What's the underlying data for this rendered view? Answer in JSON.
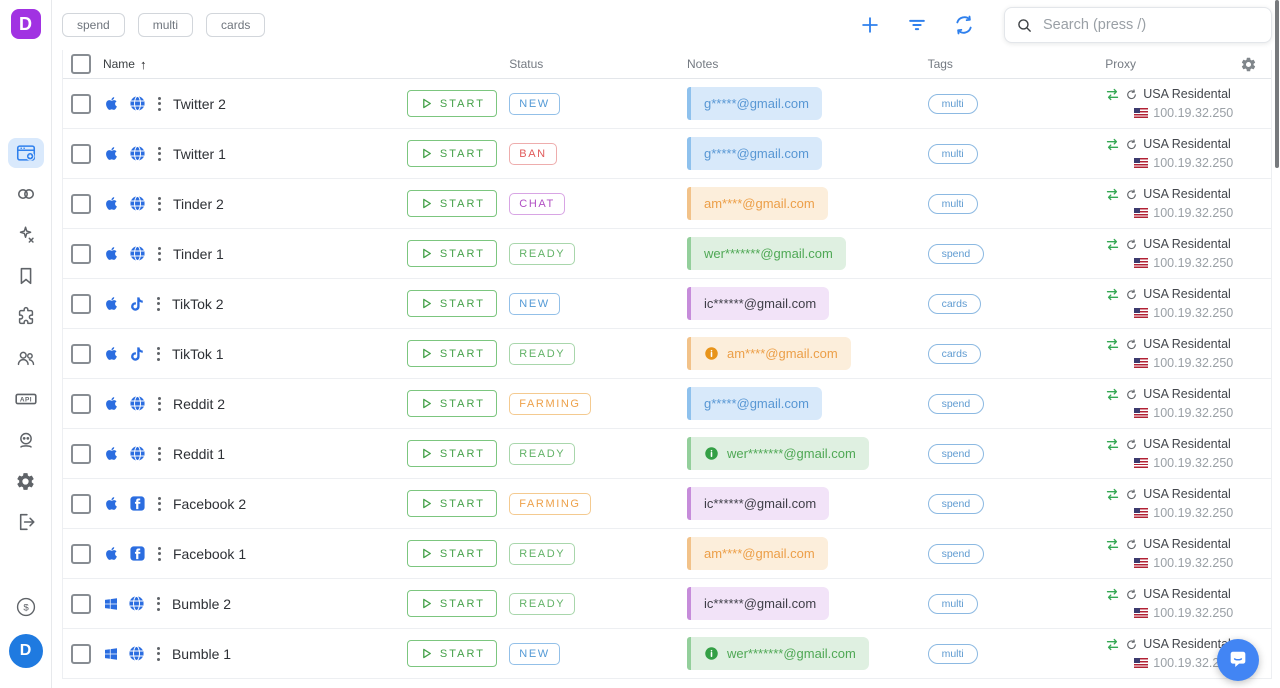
{
  "colors": {
    "accent_blue": "#2f80ed",
    "platform_blue": "#2b6de0",
    "start_green": "#43a047",
    "logo_purple": "#a132e2"
  },
  "sidebar": {
    "items": [
      {
        "name": "browser-profiles",
        "active": true
      },
      {
        "name": "proxy",
        "active": false
      },
      {
        "name": "automation",
        "active": false
      },
      {
        "name": "bookmarks",
        "active": false
      },
      {
        "name": "extensions",
        "active": false
      },
      {
        "name": "team",
        "active": false
      },
      {
        "name": "api",
        "active": false
      },
      {
        "name": "support-bot",
        "active": false
      },
      {
        "name": "settings",
        "active": false
      },
      {
        "name": "logout",
        "active": false
      }
    ],
    "avatar_initial": "D"
  },
  "topbar": {
    "chips": [
      "spend",
      "multi",
      "cards"
    ],
    "search_placeholder": "Search (press /)"
  },
  "table": {
    "headers": {
      "name": "Name",
      "status": "Status",
      "notes": "Notes",
      "tags": "Tags",
      "proxy": "Proxy"
    },
    "sort_arrow": "↑",
    "start_label": "START",
    "rows": [
      {
        "name": "Twitter 2",
        "os": "apple",
        "platform": "globe",
        "status": "NEW",
        "status_color": "blue",
        "note": "g*****@gmail.com",
        "note_color": "blue",
        "note_info": false,
        "tag": "multi",
        "proxy": "USA Residental",
        "ip": "100.19.32.250"
      },
      {
        "name": "Twitter 1",
        "os": "apple",
        "platform": "globe",
        "status": "BAN",
        "status_color": "red",
        "note": "g*****@gmail.com",
        "note_color": "blue",
        "note_info": false,
        "tag": "multi",
        "proxy": "USA Residental",
        "ip": "100.19.32.250"
      },
      {
        "name": "Tinder 2",
        "os": "apple",
        "platform": "globe",
        "status": "CHAT",
        "status_color": "purple",
        "note": "am****@gmail.com",
        "note_color": "orange",
        "note_info": false,
        "tag": "multi",
        "proxy": "USA Residental",
        "ip": "100.19.32.250"
      },
      {
        "name": "Tinder 1",
        "os": "apple",
        "platform": "globe",
        "status": "READY",
        "status_color": "green",
        "note": "wer*******@gmail.com",
        "note_color": "green",
        "note_info": false,
        "tag": "spend",
        "proxy": "USA Residental",
        "ip": "100.19.32.250"
      },
      {
        "name": "TikTok 2",
        "os": "apple",
        "platform": "tiktok",
        "status": "NEW",
        "status_color": "blue",
        "note": "ic******@gmail.com",
        "note_color": "purple",
        "note_info": false,
        "tag": "cards",
        "proxy": "USA Residental",
        "ip": "100.19.32.250"
      },
      {
        "name": "TikTok 1",
        "os": "apple",
        "platform": "tiktok",
        "status": "READY",
        "status_color": "green",
        "note": "am****@gmail.com",
        "note_color": "orange",
        "note_info": true,
        "tag": "cards",
        "proxy": "USA Residental",
        "ip": "100.19.32.250"
      },
      {
        "name": "Reddit 2",
        "os": "apple",
        "platform": "globe",
        "status": "FARMING",
        "status_color": "orange",
        "note": "g*****@gmail.com",
        "note_color": "blue",
        "note_info": false,
        "tag": "spend",
        "proxy": "USA Residental",
        "ip": "100.19.32.250"
      },
      {
        "name": "Reddit 1",
        "os": "apple",
        "platform": "globe",
        "status": "READY",
        "status_color": "green",
        "note": "wer*******@gmail.com",
        "note_color": "green",
        "note_info": true,
        "tag": "spend",
        "proxy": "USA Residental",
        "ip": "100.19.32.250"
      },
      {
        "name": "Facebook 2",
        "os": "apple",
        "platform": "facebook",
        "status": "FARMING",
        "status_color": "orange",
        "note": "ic******@gmail.com",
        "note_color": "purple",
        "note_info": false,
        "tag": "spend",
        "proxy": "USA Residental",
        "ip": "100.19.32.250"
      },
      {
        "name": "Facebook 1",
        "os": "apple",
        "platform": "facebook",
        "status": "READY",
        "status_color": "green",
        "note": "am****@gmail.com",
        "note_color": "orange",
        "note_info": false,
        "tag": "spend",
        "proxy": "USA Residental",
        "ip": "100.19.32.250"
      },
      {
        "name": "Bumble 2",
        "os": "windows",
        "platform": "globe",
        "status": "READY",
        "status_color": "green",
        "note": "ic******@gmail.com",
        "note_color": "purple",
        "note_info": false,
        "tag": "multi",
        "proxy": "USA Residental",
        "ip": "100.19.32.250"
      },
      {
        "name": "Bumble 1",
        "os": "windows",
        "platform": "globe",
        "status": "NEW",
        "status_color": "blue",
        "note": "wer*******@gmail.com",
        "note_color": "green",
        "note_info": true,
        "tag": "multi",
        "proxy": "USA Residental",
        "ip": "100.19.32.250"
      }
    ]
  }
}
